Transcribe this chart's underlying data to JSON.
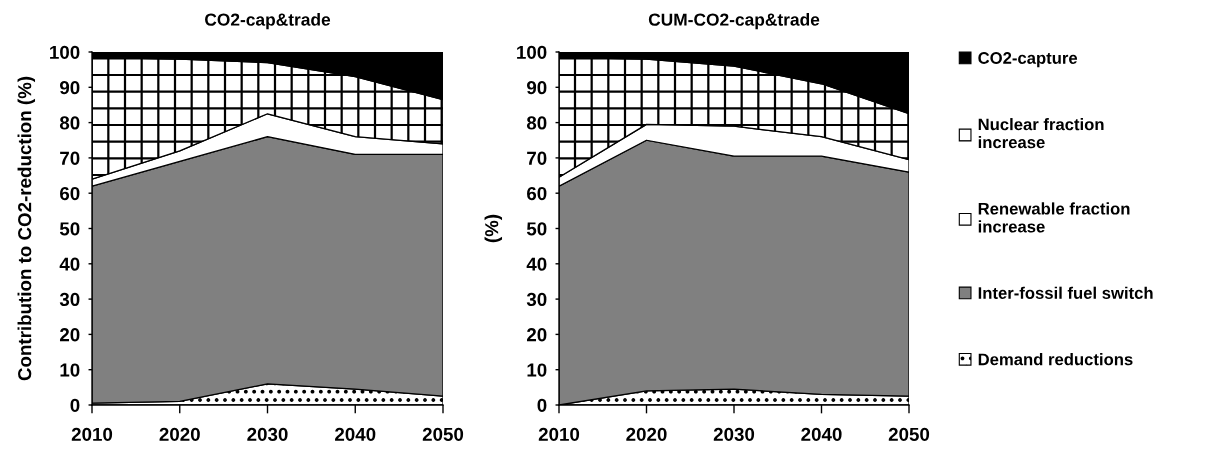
{
  "chart_data": [
    {
      "type": "area",
      "stacked": true,
      "title": "CO2-cap&trade",
      "ylabel": "Contribution to CO2-reduction (%)",
      "x": [
        2010,
        2020,
        2030,
        2040,
        2050
      ],
      "xlim": [
        2010,
        2050
      ],
      "xticks": [
        2010,
        2020,
        2030,
        2040,
        2050
      ],
      "ylim": [
        0,
        100
      ],
      "yticks": [
        0,
        10,
        20,
        30,
        40,
        50,
        60,
        70,
        80,
        90,
        100
      ],
      "legend": "right",
      "series": [
        {
          "name": "Demand reductions",
          "color": "#000000",
          "values": [
            0.5,
            1,
            6,
            4.5,
            2.5
          ]
        },
        {
          "name": "Inter-fossil fuel switch",
          "color": "#808080",
          "values": [
            61.5,
            68,
            70,
            66.5,
            68.5
          ]
        },
        {
          "name": "Renewable fraction\nincrease",
          "color": "#ffffff",
          "values": [
            2,
            3,
            6.5,
            5,
            3
          ]
        },
        {
          "name": "Nuclear fraction\nincrease",
          "color": "#000000",
          "values": [
            34.5,
            26,
            14.5,
            17,
            12.5
          ]
        },
        {
          "name": "CO2-capture",
          "color": "#000000",
          "values": [
            1.5,
            2,
            3,
            7,
            13.5
          ]
        }
      ]
    },
    {
      "type": "area",
      "stacked": true,
      "title": "CUM-CO2-cap&trade",
      "ylabel": "(%)",
      "x": [
        2010,
        2020,
        2030,
        2040,
        2050
      ],
      "xlim": [
        2010,
        2050
      ],
      "xticks": [
        2010,
        2020,
        2030,
        2040,
        2050
      ],
      "ylim": [
        0,
        100
      ],
      "yticks": [
        0,
        10,
        20,
        30,
        40,
        50,
        60,
        70,
        80,
        90,
        100
      ],
      "series": [
        {
          "name": "Demand reductions",
          "color": "#000000",
          "values": [
            0,
            4,
            4.5,
            3,
            2.5
          ]
        },
        {
          "name": "Inter-fossil fuel switch",
          "color": "#808080",
          "values": [
            62,
            71,
            66,
            67.5,
            63.5
          ]
        },
        {
          "name": "Renewable fraction\nincrease",
          "color": "#ffffff",
          "values": [
            2.5,
            4.5,
            8.5,
            5.5,
            3.5
          ]
        },
        {
          "name": "Nuclear fraction\nincrease",
          "color": "#000000",
          "values": [
            34,
            18.5,
            17,
            15,
            13
          ]
        },
        {
          "name": "CO2-capture",
          "color": "#000000",
          "values": [
            1.5,
            2,
            4,
            9,
            17.5
          ]
        }
      ]
    }
  ]
}
